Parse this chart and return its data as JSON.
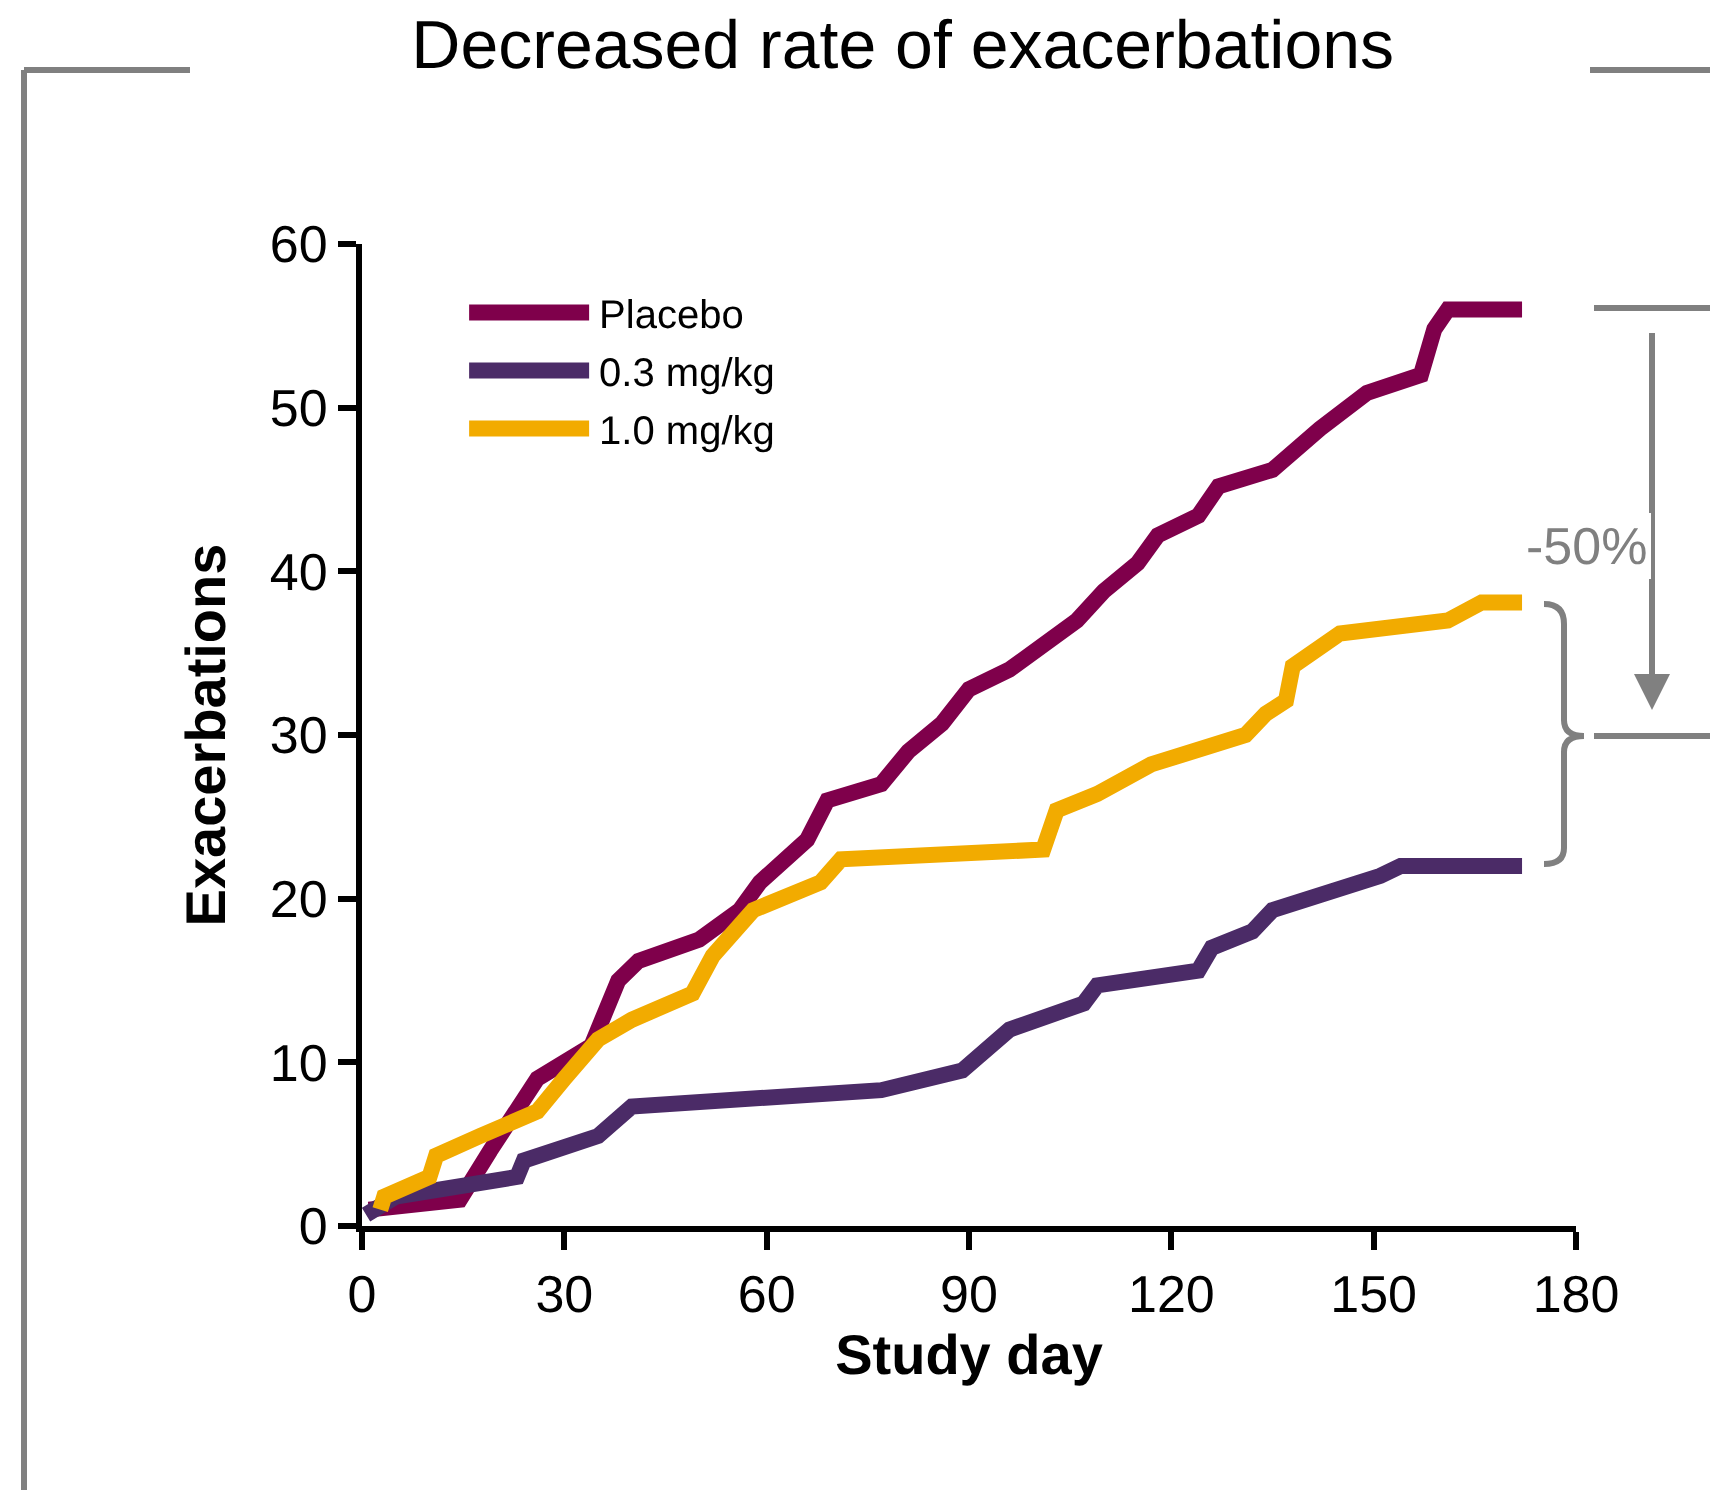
{
  "chart_data": {
    "type": "line",
    "title": "Decreased rate of exacerbations",
    "xlabel": "Study day",
    "ylabel": "Exacerbations",
    "xlim": [
      0,
      180
    ],
    "xticks": [
      0,
      30,
      60,
      90,
      120,
      150,
      180
    ],
    "ylim": [
      0,
      60
    ],
    "yticks": [
      0,
      10,
      20,
      30,
      40,
      50,
      60
    ],
    "legend": "top left",
    "marker": "none",
    "line_style": "solid",
    "annotations": [
      "-50%"
    ],
    "series": [
      {
        "name": "Placebo",
        "color": "#7f004b",
        "x": [
          1,
          14.5,
          19,
          26,
          34,
          38,
          41,
          50,
          56,
          59,
          66,
          69,
          77,
          81,
          86,
          90,
          96,
          106,
          110,
          115,
          118,
          124,
          127,
          135,
          142,
          149,
          157,
          159,
          161,
          172
        ],
        "values": [
          1,
          1.6,
          4.6,
          9,
          11,
          15,
          16.2,
          17.5,
          19.3,
          21,
          23.6,
          26,
          27,
          29,
          30.7,
          32.8,
          34,
          37,
          38.8,
          40.5,
          42.2,
          43.4,
          45.2,
          46.2,
          48.7,
          50.9,
          52,
          54.8,
          56,
          56
        ]
      },
      {
        "name": "0.3 mg/kg",
        "color": "#4b2b67",
        "x": [
          0.6,
          5,
          23,
          24,
          35,
          40,
          77,
          89,
          96,
          107,
          109,
          124,
          126,
          132,
          135,
          151,
          154,
          172
        ],
        "values": [
          0.7,
          1.8,
          3,
          4,
          5.5,
          7.3,
          8.3,
          9.5,
          12,
          13.6,
          14.7,
          15.6,
          17,
          18,
          19.3,
          21.4,
          22,
          22
        ]
      },
      {
        "name": "1.0 mg/kg",
        "color": "#f2ab00",
        "x": [
          2.7,
          3.3,
          10,
          11,
          17.5,
          26,
          30,
          35,
          40,
          49,
          52,
          58,
          68,
          71,
          101,
          103,
          109,
          117,
          131,
          134,
          137,
          138,
          145,
          161,
          166,
          172
        ],
        "values": [
          1,
          1.8,
          3,
          4.3,
          5.5,
          7,
          9,
          11.4,
          12.6,
          14.2,
          16.5,
          19.3,
          21,
          22.4,
          23,
          25.4,
          26.4,
          28.2,
          30,
          31.3,
          32.1,
          34.2,
          36.2,
          37,
          38.1,
          38.1
        ]
      }
    ]
  }
}
